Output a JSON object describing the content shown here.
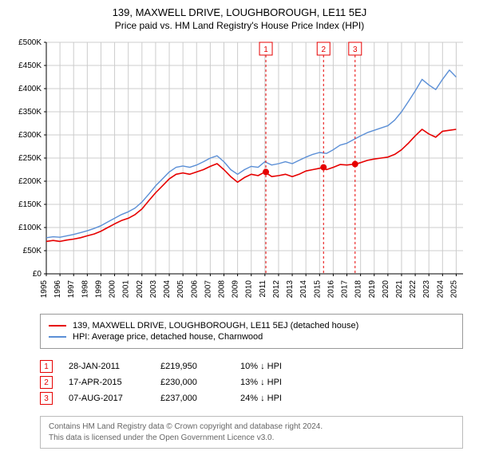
{
  "title": "139, MAXWELL DRIVE, LOUGHBOROUGH, LE11 5EJ",
  "subtitle": "Price paid vs. HM Land Registry's House Price Index (HPI)",
  "chart": {
    "type": "line",
    "x_start": 1995,
    "x_end": 2025.5,
    "xticks": [
      1995,
      1996,
      1997,
      1998,
      1999,
      2000,
      2001,
      2002,
      2003,
      2004,
      2005,
      2006,
      2007,
      2008,
      2009,
      2010,
      2011,
      2012,
      2013,
      2014,
      2015,
      2016,
      2017,
      2018,
      2019,
      2020,
      2021,
      2022,
      2023,
      2024,
      2025
    ],
    "ylim": [
      0,
      500000
    ],
    "ytick_step": 50000,
    "ytick_labels": [
      "£0",
      "£50K",
      "£100K",
      "£150K",
      "£200K",
      "£250K",
      "£300K",
      "£350K",
      "£400K",
      "£450K",
      "£500K"
    ],
    "grid_color": "#cccccc",
    "background_color": "#ffffff",
    "axis_color": "#000000",
    "series": [
      {
        "name": "property",
        "color": "#e60000",
        "width": 1.6,
        "points": [
          [
            1995.0,
            70000
          ],
          [
            1995.5,
            72000
          ],
          [
            1996.0,
            70000
          ],
          [
            1996.5,
            73000
          ],
          [
            1997.0,
            75000
          ],
          [
            1997.5,
            78000
          ],
          [
            1998.0,
            82000
          ],
          [
            1998.5,
            86000
          ],
          [
            1999.0,
            92000
          ],
          [
            1999.5,
            100000
          ],
          [
            2000.0,
            108000
          ],
          [
            2000.5,
            115000
          ],
          [
            2001.0,
            120000
          ],
          [
            2001.5,
            128000
          ],
          [
            2002.0,
            140000
          ],
          [
            2002.5,
            158000
          ],
          [
            2003.0,
            175000
          ],
          [
            2003.5,
            190000
          ],
          [
            2004.0,
            205000
          ],
          [
            2004.5,
            215000
          ],
          [
            2005.0,
            218000
          ],
          [
            2005.5,
            215000
          ],
          [
            2006.0,
            220000
          ],
          [
            2006.5,
            225000
          ],
          [
            2007.0,
            232000
          ],
          [
            2007.5,
            238000
          ],
          [
            2008.0,
            225000
          ],
          [
            2008.5,
            210000
          ],
          [
            2009.0,
            198000
          ],
          [
            2009.5,
            208000
          ],
          [
            2010.0,
            215000
          ],
          [
            2010.5,
            212000
          ],
          [
            2011.0,
            219950
          ],
          [
            2011.5,
            210000
          ],
          [
            2012.0,
            212000
          ],
          [
            2012.5,
            215000
          ],
          [
            2013.0,
            210000
          ],
          [
            2013.5,
            215000
          ],
          [
            2014.0,
            222000
          ],
          [
            2014.5,
            225000
          ],
          [
            2015.0,
            228000
          ],
          [
            2015.3,
            230000
          ],
          [
            2015.5,
            225000
          ],
          [
            2016.0,
            230000
          ],
          [
            2016.5,
            236000
          ],
          [
            2017.0,
            235000
          ],
          [
            2017.6,
            237000
          ],
          [
            2018.0,
            240000
          ],
          [
            2018.5,
            245000
          ],
          [
            2019.0,
            248000
          ],
          [
            2019.5,
            250000
          ],
          [
            2020.0,
            252000
          ],
          [
            2020.5,
            258000
          ],
          [
            2021.0,
            268000
          ],
          [
            2021.5,
            282000
          ],
          [
            2022.0,
            298000
          ],
          [
            2022.5,
            312000
          ],
          [
            2023.0,
            302000
          ],
          [
            2023.5,
            295000
          ],
          [
            2024.0,
            308000
          ],
          [
            2024.5,
            310000
          ],
          [
            2025.0,
            312000
          ]
        ]
      },
      {
        "name": "hpi",
        "color": "#5b8fd6",
        "width": 1.4,
        "points": [
          [
            1995.0,
            78000
          ],
          [
            1995.5,
            80000
          ],
          [
            1996.0,
            79000
          ],
          [
            1996.5,
            82000
          ],
          [
            1997.0,
            85000
          ],
          [
            1997.5,
            89000
          ],
          [
            1998.0,
            93000
          ],
          [
            1998.5,
            98000
          ],
          [
            1999.0,
            104000
          ],
          [
            1999.5,
            112000
          ],
          [
            2000.0,
            120000
          ],
          [
            2000.5,
            128000
          ],
          [
            2001.0,
            134000
          ],
          [
            2001.5,
            142000
          ],
          [
            2002.0,
            155000
          ],
          [
            2002.5,
            172000
          ],
          [
            2003.0,
            190000
          ],
          [
            2003.5,
            205000
          ],
          [
            2004.0,
            220000
          ],
          [
            2004.5,
            230000
          ],
          [
            2005.0,
            233000
          ],
          [
            2005.5,
            230000
          ],
          [
            2006.0,
            235000
          ],
          [
            2006.5,
            242000
          ],
          [
            2007.0,
            250000
          ],
          [
            2007.5,
            255000
          ],
          [
            2008.0,
            242000
          ],
          [
            2008.5,
            225000
          ],
          [
            2009.0,
            215000
          ],
          [
            2009.5,
            225000
          ],
          [
            2010.0,
            232000
          ],
          [
            2010.5,
            230000
          ],
          [
            2011.0,
            242000
          ],
          [
            2011.5,
            235000
          ],
          [
            2012.0,
            238000
          ],
          [
            2012.5,
            242000
          ],
          [
            2013.0,
            238000
          ],
          [
            2013.5,
            245000
          ],
          [
            2014.0,
            252000
          ],
          [
            2014.5,
            258000
          ],
          [
            2015.0,
            262000
          ],
          [
            2015.5,
            260000
          ],
          [
            2016.0,
            268000
          ],
          [
            2016.5,
            278000
          ],
          [
            2017.0,
            282000
          ],
          [
            2017.5,
            290000
          ],
          [
            2018.0,
            298000
          ],
          [
            2018.5,
            305000
          ],
          [
            2019.0,
            310000
          ],
          [
            2019.5,
            315000
          ],
          [
            2020.0,
            320000
          ],
          [
            2020.5,
            332000
          ],
          [
            2021.0,
            350000
          ],
          [
            2021.5,
            372000
          ],
          [
            2022.0,
            395000
          ],
          [
            2022.5,
            420000
          ],
          [
            2023.0,
            408000
          ],
          [
            2023.5,
            398000
          ],
          [
            2024.0,
            420000
          ],
          [
            2024.5,
            440000
          ],
          [
            2025.0,
            425000
          ]
        ]
      }
    ],
    "markers": [
      {
        "n": "1",
        "x": 2011.07,
        "y": 219950,
        "color": "#e60000"
      },
      {
        "n": "2",
        "x": 2015.29,
        "y": 230000,
        "color": "#e60000"
      },
      {
        "n": "3",
        "x": 2017.6,
        "y": 237000,
        "color": "#e60000"
      }
    ]
  },
  "legend": {
    "items": [
      {
        "color": "#e60000",
        "label": "139, MAXWELL DRIVE, LOUGHBOROUGH, LE11 5EJ (detached house)"
      },
      {
        "color": "#5b8fd6",
        "label": "HPI: Average price, detached house, Charnwood"
      }
    ]
  },
  "sales": [
    {
      "n": "1",
      "date": "28-JAN-2011",
      "price": "£219,950",
      "diff": "10% ↓ HPI"
    },
    {
      "n": "2",
      "date": "17-APR-2015",
      "price": "£230,000",
      "diff": "13% ↓ HPI"
    },
    {
      "n": "3",
      "date": "07-AUG-2017",
      "price": "£237,000",
      "diff": "24% ↓ HPI"
    }
  ],
  "footer": {
    "line1": "Contains HM Land Registry data © Crown copyright and database right 2024.",
    "line2": "This data is licensed under the Open Government Licence v3.0."
  },
  "marker_border_color": "#e60000"
}
